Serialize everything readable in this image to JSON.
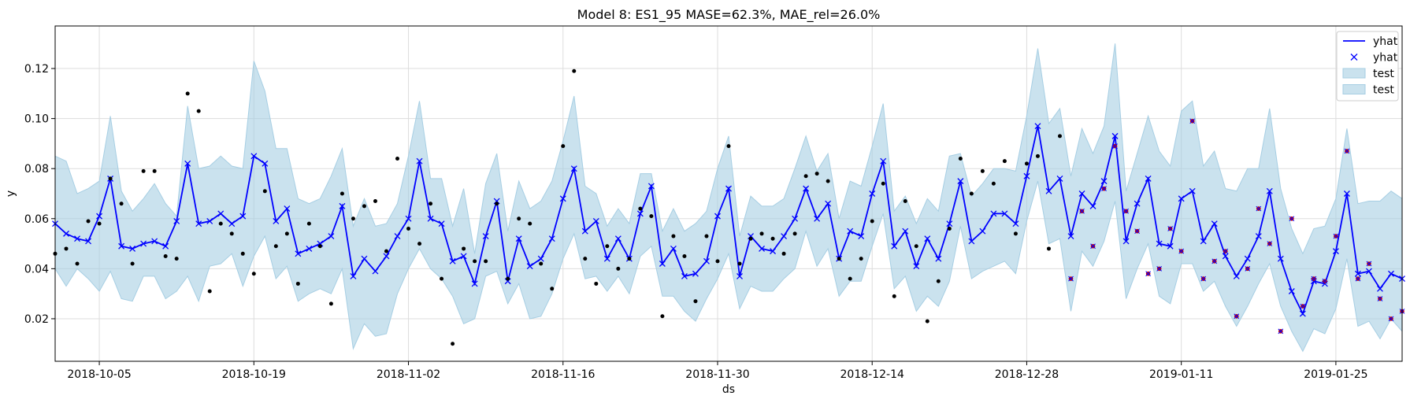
{
  "chart_data": {
    "type": "line",
    "title": "Model 8: ES1_95 MASE=62.3%, MAE_rel=26.0%",
    "xlabel": "ds",
    "ylabel": "y",
    "x_start": "2018-10-01",
    "xlim": [
      "2018-10-01",
      "2019-01-31"
    ],
    "ylim": [
      0.003,
      0.137
    ],
    "x_ticks": [
      "2018-10-05",
      "2018-10-19",
      "2018-11-02",
      "2018-11-16",
      "2018-11-30",
      "2018-12-14",
      "2018-12-28",
      "2019-01-11",
      "2019-01-25"
    ],
    "y_ticks": [
      0.02,
      0.04,
      0.06,
      0.08,
      0.1,
      0.12
    ],
    "y_tick_labels": [
      "0.02",
      "0.04",
      "0.06",
      "0.08",
      "0.10",
      "0.12"
    ],
    "grid": true,
    "legend_position": "top-right",
    "legend": [
      {
        "label": "yhat",
        "kind": "line",
        "color": "#0000ff"
      },
      {
        "label": "yhat",
        "kind": "marker-x",
        "color": "#0000ff"
      },
      {
        "label": "test",
        "kind": "band",
        "color": "#a6cee3"
      },
      {
        "label": "test",
        "kind": "band",
        "color": "#a6cee3"
      }
    ],
    "colors": {
      "line": "#0000ff",
      "band": "#a6cee3",
      "points": "#000000",
      "test_points": "#cc0000"
    },
    "series": [
      {
        "name": "yhat",
        "kind": "line-with-x",
        "values": [
          0.058,
          0.054,
          0.052,
          0.051,
          0.061,
          0.076,
          0.049,
          0.048,
          0.05,
          0.051,
          0.049,
          0.059,
          0.082,
          0.058,
          0.059,
          0.062,
          0.058,
          0.061,
          0.085,
          0.082,
          0.059,
          0.064,
          0.046,
          0.048,
          0.05,
          0.053,
          0.065,
          0.037,
          0.044,
          0.039,
          0.045,
          0.053,
          0.06,
          0.083,
          0.06,
          0.058,
          0.043,
          0.045,
          0.034,
          0.053,
          0.067,
          0.035,
          0.052,
          0.041,
          0.044,
          0.052,
          0.068,
          0.08,
          0.055,
          0.059,
          0.044,
          0.052,
          0.044,
          0.062,
          0.073,
          0.042,
          0.048,
          0.037,
          0.038,
          0.043,
          0.061,
          0.072,
          0.037,
          0.053,
          0.048,
          0.047,
          0.053,
          0.06,
          0.072,
          0.06,
          0.066,
          0.044,
          0.055,
          0.053,
          0.07,
          0.083,
          0.049,
          0.055,
          0.041,
          0.052,
          0.044,
          0.058,
          0.075,
          0.051,
          0.055,
          0.062,
          0.062,
          0.058,
          0.077,
          0.097,
          0.071,
          0.076,
          0.053,
          0.07,
          0.065,
          0.075,
          0.093,
          0.051,
          0.066,
          0.076,
          0.05,
          0.049,
          0.068,
          0.071,
          0.051,
          0.058,
          0.045,
          0.037,
          0.044,
          0.053,
          0.071,
          0.044,
          0.031,
          0.022,
          0.035,
          0.034,
          0.047,
          0.07,
          0.038,
          0.039,
          0.032,
          0.038,
          0.036
        ]
      },
      {
        "name": "upper",
        "kind": "band-upper",
        "values": [
          0.085,
          0.083,
          0.07,
          0.072,
          0.075,
          0.101,
          0.071,
          0.063,
          0.068,
          0.074,
          0.066,
          0.061,
          0.105,
          0.08,
          0.081,
          0.085,
          0.081,
          0.08,
          0.123,
          0.111,
          0.088,
          0.088,
          0.068,
          0.066,
          0.068,
          0.077,
          0.088,
          0.057,
          0.068,
          0.057,
          0.058,
          0.066,
          0.085,
          0.107,
          0.076,
          0.076,
          0.057,
          0.072,
          0.046,
          0.074,
          0.086,
          0.055,
          0.075,
          0.064,
          0.067,
          0.075,
          0.091,
          0.109,
          0.073,
          0.07,
          0.057,
          0.064,
          0.058,
          0.078,
          0.078,
          0.055,
          0.064,
          0.055,
          0.058,
          0.063,
          0.08,
          0.093,
          0.053,
          0.069,
          0.065,
          0.065,
          0.068,
          0.08,
          0.093,
          0.079,
          0.086,
          0.06,
          0.075,
          0.073,
          0.089,
          0.106,
          0.063,
          0.069,
          0.058,
          0.068,
          0.063,
          0.085,
          0.086,
          0.069,
          0.074,
          0.08,
          0.08,
          0.079,
          0.101,
          0.128,
          0.098,
          0.104,
          0.077,
          0.096,
          0.086,
          0.097,
          0.13,
          0.071,
          0.086,
          0.101,
          0.087,
          0.081,
          0.103,
          0.107,
          0.081,
          0.087,
          0.072,
          0.071,
          0.08,
          0.08,
          0.104,
          0.072,
          0.056,
          0.046,
          0.056,
          0.057,
          0.068,
          0.096,
          0.066,
          0.067,
          0.067,
          0.071,
          0.068
        ]
      },
      {
        "name": "lower",
        "kind": "band-lower",
        "values": [
          0.04,
          0.033,
          0.04,
          0.036,
          0.031,
          0.039,
          0.028,
          0.027,
          0.037,
          0.037,
          0.028,
          0.031,
          0.037,
          0.027,
          0.041,
          0.042,
          0.046,
          0.033,
          0.045,
          0.053,
          0.036,
          0.041,
          0.027,
          0.03,
          0.032,
          0.03,
          0.04,
          0.008,
          0.018,
          0.013,
          0.014,
          0.03,
          0.04,
          0.048,
          0.04,
          0.036,
          0.029,
          0.018,
          0.02,
          0.037,
          0.039,
          0.026,
          0.034,
          0.02,
          0.021,
          0.03,
          0.044,
          0.054,
          0.036,
          0.037,
          0.031,
          0.037,
          0.03,
          0.045,
          0.049,
          0.029,
          0.029,
          0.023,
          0.019,
          0.028,
          0.036,
          0.046,
          0.024,
          0.033,
          0.031,
          0.031,
          0.036,
          0.04,
          0.055,
          0.041,
          0.048,
          0.029,
          0.035,
          0.035,
          0.049,
          0.062,
          0.032,
          0.037,
          0.023,
          0.029,
          0.025,
          0.035,
          0.057,
          0.036,
          0.039,
          0.041,
          0.043,
          0.038,
          0.059,
          0.075,
          0.05,
          0.052,
          0.023,
          0.047,
          0.041,
          0.051,
          0.067,
          0.028,
          0.04,
          0.05,
          0.029,
          0.026,
          0.042,
          0.042,
          0.031,
          0.035,
          0.025,
          0.017,
          0.025,
          0.034,
          0.042,
          0.025,
          0.015,
          0.007,
          0.016,
          0.014,
          0.024,
          0.044,
          0.017,
          0.019,
          0.012,
          0.02,
          0.015
        ]
      }
    ],
    "train_points": [
      [
        0.046,
        0.048,
        0.042,
        0.059,
        0.058,
        0.076,
        0.066,
        0.042,
        0.079,
        0.079,
        0.045,
        0.044,
        0.11,
        0.103,
        0.031,
        0.058,
        0.054,
        0.046,
        0.038,
        0.071,
        0.049,
        0.054,
        0.034,
        0.058,
        0.049,
        0.026,
        0.07,
        0.06,
        0.065,
        0.067,
        0.047,
        0.084,
        0.056,
        0.05,
        0.066,
        0.036,
        0.01,
        0.048,
        0.043,
        0.043,
        0.066,
        0.036,
        0.06,
        0.058,
        0.042,
        0.032,
        0.089,
        0.119,
        0.044,
        0.034,
        0.049,
        0.04,
        0.044,
        0.064,
        0.061,
        0.021,
        0.053,
        0.045,
        0.027,
        0.053,
        0.043,
        0.089,
        0.042,
        0.052,
        0.054,
        0.052,
        0.046,
        0.054,
        0.077,
        0.078,
        0.075,
        0.044,
        0.036,
        0.044,
        0.059,
        0.074,
        0.029,
        0.067,
        0.049,
        0.019,
        0.035,
        0.056,
        0.084,
        0.07,
        0.079,
        0.074,
        0.083,
        0.054,
        0.082,
        0.085,
        0.048,
        0.093
      ]
    ],
    "test_points": {
      "start_index": 92,
      "values": [
        0.036,
        0.063,
        0.049,
        0.072,
        0.089,
        0.063,
        0.055,
        0.038,
        0.04,
        0.056,
        0.047,
        0.099,
        0.036,
        0.043,
        0.047,
        0.021,
        0.04,
        0.064,
        0.05,
        0.015,
        0.06,
        0.025,
        0.036,
        0.035,
        0.053,
        0.087,
        0.036,
        0.042,
        0.028,
        0.02,
        0.023
      ]
    }
  }
}
